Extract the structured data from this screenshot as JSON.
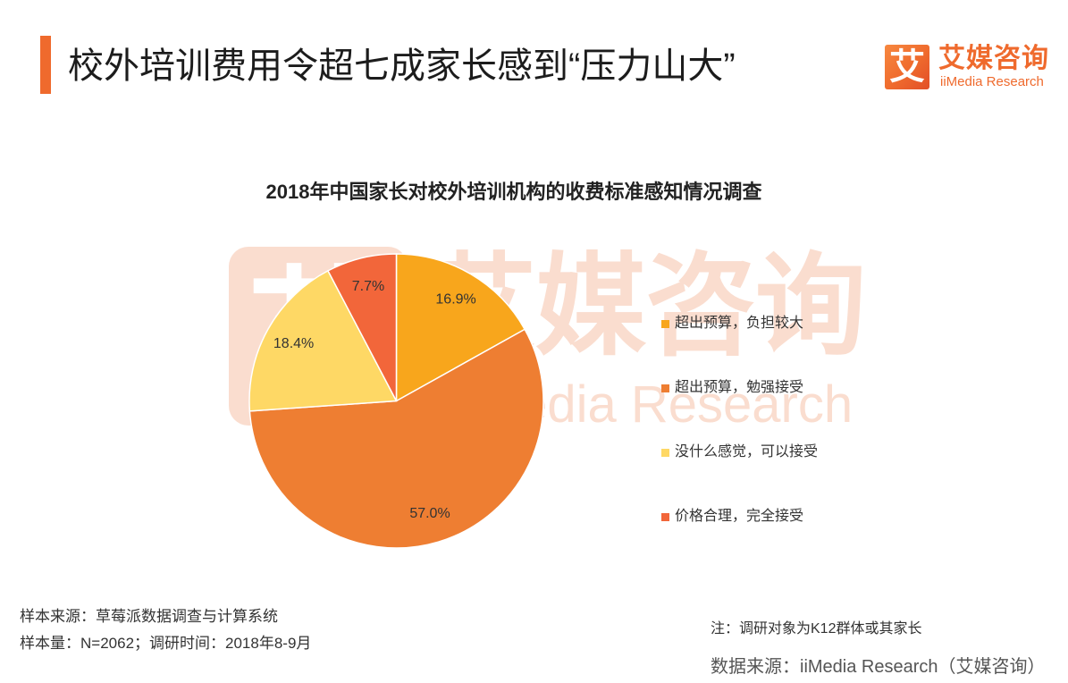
{
  "theme": {
    "brand": "#EF6A2D",
    "watermark": "#FADDCF"
  },
  "header": {
    "title": "校外培训费用令超七成家长感到“压力山大”",
    "logo_mark": "艾",
    "logo_name": "艾媒咨询",
    "logo_sub": "iiMedia Research"
  },
  "watermark": {
    "mark": "艾",
    "name": "艾媒咨询",
    "sub": "iiMedia Research"
  },
  "chart_data": {
    "type": "pie",
    "title": "2018年中国家长对校外培训机构的收费标准感知情况调查",
    "categories": [
      "超出预算，负担较大",
      "超出预算，勉强接受",
      "没什么感觉，可以接受",
      "价格合理，完全接受"
    ],
    "values": [
      16.9,
      57.0,
      18.4,
      7.7
    ],
    "data_labels": [
      "16.9%",
      "57.0%",
      "18.4%",
      "7.7%"
    ],
    "colors": [
      "#F8A61C",
      "#EE7E32",
      "#FED865",
      "#F2663A"
    ],
    "legend": "right"
  },
  "footer": {
    "sample_source": "样本来源：草莓派数据调查与计算系统",
    "sample_size": "样本量：N=2062；调研时间：2018年8-9月",
    "note": "注：调研对象为K12群体或其家长",
    "data_source": "数据来源：iiMedia Research（艾媒咨询）"
  }
}
